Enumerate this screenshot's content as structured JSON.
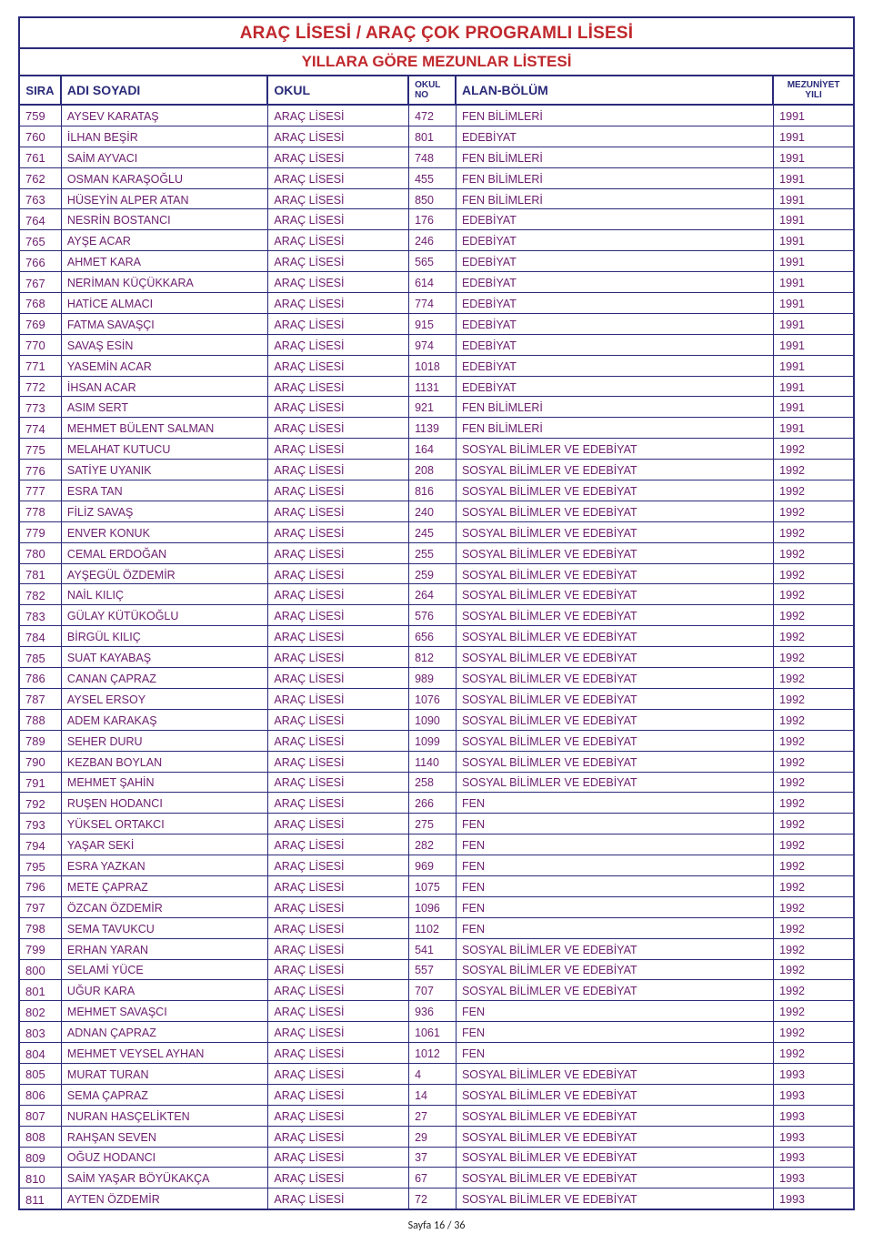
{
  "title": "ARAÇ LİSESİ / ARAÇ ÇOK PROGRAMLI LİSESİ",
  "subtitle": "YILLARA GÖRE MEZUNLAR LİSTESİ",
  "columns": {
    "sira": "SIRA",
    "ad": "ADI SOYADI",
    "okul": "OKUL",
    "okulno": "OKUL NO",
    "alan": "ALAN-BÖLÜM",
    "yil": "MEZUNİYET YILI"
  },
  "footer": "Sayfa 16 / 36",
  "rows": [
    {
      "sira": "759",
      "ad": "AYSEV KARATAŞ",
      "okul": "ARAÇ LİSESİ",
      "okulno": "472",
      "alan": "FEN BİLİMLERİ",
      "yil": "1991"
    },
    {
      "sira": "760",
      "ad": "İLHAN BEŞİR",
      "okul": "ARAÇ LİSESİ",
      "okulno": "801",
      "alan": "EDEBİYAT",
      "yil": "1991"
    },
    {
      "sira": "761",
      "ad": "SAİM AYVACI",
      "okul": "ARAÇ LİSESİ",
      "okulno": "748",
      "alan": "FEN BİLİMLERİ",
      "yil": "1991"
    },
    {
      "sira": "762",
      "ad": "OSMAN KARAŞOĞLU",
      "okul": "ARAÇ LİSESİ",
      "okulno": "455",
      "alan": "FEN BİLİMLERİ",
      "yil": "1991"
    },
    {
      "sira": "763",
      "ad": "HÜSEYİN ALPER ATAN",
      "okul": "ARAÇ LİSESİ",
      "okulno": "850",
      "alan": "FEN BİLİMLERİ",
      "yil": "1991"
    },
    {
      "sira": "764",
      "ad": "NESRİN BOSTANCI",
      "okul": "ARAÇ LİSESİ",
      "okulno": "176",
      "alan": "EDEBİYAT",
      "yil": "1991"
    },
    {
      "sira": "765",
      "ad": "AYŞE ACAR",
      "okul": "ARAÇ LİSESİ",
      "okulno": "246",
      "alan": "EDEBİYAT",
      "yil": "1991"
    },
    {
      "sira": "766",
      "ad": "AHMET KARA",
      "okul": "ARAÇ LİSESİ",
      "okulno": "565",
      "alan": "EDEBİYAT",
      "yil": "1991"
    },
    {
      "sira": "767",
      "ad": "NERİMAN KÜÇÜKKARA",
      "okul": "ARAÇ LİSESİ",
      "okulno": "614",
      "alan": "EDEBİYAT",
      "yil": "1991"
    },
    {
      "sira": "768",
      "ad": "HATİCE ALMACI",
      "okul": "ARAÇ LİSESİ",
      "okulno": "774",
      "alan": "EDEBİYAT",
      "yil": "1991"
    },
    {
      "sira": "769",
      "ad": "FATMA SAVAŞÇI",
      "okul": "ARAÇ LİSESİ",
      "okulno": "915",
      "alan": "EDEBİYAT",
      "yil": "1991"
    },
    {
      "sira": "770",
      "ad": "SAVAŞ ESİN",
      "okul": "ARAÇ LİSESİ",
      "okulno": "974",
      "alan": "EDEBİYAT",
      "yil": "1991"
    },
    {
      "sira": "771",
      "ad": "YASEMİN ACAR",
      "okul": "ARAÇ LİSESİ",
      "okulno": "1018",
      "alan": "EDEBİYAT",
      "yil": "1991"
    },
    {
      "sira": "772",
      "ad": "İHSAN ACAR",
      "okul": "ARAÇ LİSESİ",
      "okulno": "1131",
      "alan": "EDEBİYAT",
      "yil": "1991"
    },
    {
      "sira": "773",
      "ad": "ASIM SERT",
      "okul": "ARAÇ LİSESİ",
      "okulno": "921",
      "alan": "FEN BİLİMLERİ",
      "yil": "1991"
    },
    {
      "sira": "774",
      "ad": "MEHMET BÜLENT SALMAN",
      "okul": "ARAÇ LİSESİ",
      "okulno": "1139",
      "alan": "FEN BİLİMLERİ",
      "yil": "1991"
    },
    {
      "sira": "775",
      "ad": "MELAHAT KUTUCU",
      "okul": "ARAÇ LİSESİ",
      "okulno": "164",
      "alan": "SOSYAL BİLİMLER VE EDEBİYAT",
      "yil": "1992"
    },
    {
      "sira": "776",
      "ad": "SATİYE UYANIK",
      "okul": "ARAÇ LİSESİ",
      "okulno": "208",
      "alan": "SOSYAL BİLİMLER VE EDEBİYAT",
      "yil": "1992"
    },
    {
      "sira": "777",
      "ad": "ESRA TAN",
      "okul": "ARAÇ LİSESİ",
      "okulno": "816",
      "alan": "SOSYAL BİLİMLER VE EDEBİYAT",
      "yil": "1992"
    },
    {
      "sira": "778",
      "ad": "FİLİZ SAVAŞ",
      "okul": "ARAÇ LİSESİ",
      "okulno": "240",
      "alan": "SOSYAL BİLİMLER VE EDEBİYAT",
      "yil": "1992"
    },
    {
      "sira": "779",
      "ad": "ENVER KONUK",
      "okul": "ARAÇ LİSESİ",
      "okulno": "245",
      "alan": "SOSYAL BİLİMLER VE EDEBİYAT",
      "yil": "1992"
    },
    {
      "sira": "780",
      "ad": "CEMAL ERDOĞAN",
      "okul": "ARAÇ LİSESİ",
      "okulno": "255",
      "alan": "SOSYAL BİLİMLER VE EDEBİYAT",
      "yil": "1992"
    },
    {
      "sira": "781",
      "ad": "AYŞEGÜL ÖZDEMİR",
      "okul": "ARAÇ LİSESİ",
      "okulno": "259",
      "alan": "SOSYAL BİLİMLER VE EDEBİYAT",
      "yil": "1992"
    },
    {
      "sira": "782",
      "ad": "NAİL KILIÇ",
      "okul": "ARAÇ LİSESİ",
      "okulno": "264",
      "alan": "SOSYAL BİLİMLER VE EDEBİYAT",
      "yil": "1992"
    },
    {
      "sira": "783",
      "ad": "GÜLAY KÜTÜKOĞLU",
      "okul": "ARAÇ LİSESİ",
      "okulno": "576",
      "alan": "SOSYAL BİLİMLER VE EDEBİYAT",
      "yil": "1992"
    },
    {
      "sira": "784",
      "ad": "BİRGÜL KILIÇ",
      "okul": "ARAÇ LİSESİ",
      "okulno": "656",
      "alan": "SOSYAL BİLİMLER VE EDEBİYAT",
      "yil": "1992"
    },
    {
      "sira": "785",
      "ad": "SUAT KAYABAŞ",
      "okul": "ARAÇ LİSESİ",
      "okulno": "812",
      "alan": "SOSYAL BİLİMLER VE EDEBİYAT",
      "yil": "1992"
    },
    {
      "sira": "786",
      "ad": "CANAN ÇAPRAZ",
      "okul": "ARAÇ LİSESİ",
      "okulno": "989",
      "alan": "SOSYAL BİLİMLER VE EDEBİYAT",
      "yil": "1992"
    },
    {
      "sira": "787",
      "ad": "AYSEL ERSOY",
      "okul": "ARAÇ LİSESİ",
      "okulno": "1076",
      "alan": "SOSYAL BİLİMLER VE EDEBİYAT",
      "yil": "1992"
    },
    {
      "sira": "788",
      "ad": "ADEM KARAKAŞ",
      "okul": "ARAÇ LİSESİ",
      "okulno": "1090",
      "alan": "SOSYAL BİLİMLER VE EDEBİYAT",
      "yil": "1992"
    },
    {
      "sira": "789",
      "ad": "SEHER DURU",
      "okul": "ARAÇ LİSESİ",
      "okulno": "1099",
      "alan": "SOSYAL BİLİMLER VE EDEBİYAT",
      "yil": "1992"
    },
    {
      "sira": "790",
      "ad": "KEZBAN BOYLAN",
      "okul": "ARAÇ LİSESİ",
      "okulno": "1140",
      "alan": "SOSYAL BİLİMLER VE EDEBİYAT",
      "yil": "1992"
    },
    {
      "sira": "791",
      "ad": "MEHMET ŞAHİN",
      "okul": "ARAÇ LİSESİ",
      "okulno": "258",
      "alan": "SOSYAL BİLİMLER VE EDEBİYAT",
      "yil": "1992"
    },
    {
      "sira": "792",
      "ad": "RUŞEN HODANCI",
      "okul": "ARAÇ LİSESİ",
      "okulno": "266",
      "alan": "FEN",
      "yil": "1992"
    },
    {
      "sira": "793",
      "ad": "YÜKSEL ORTAKCI",
      "okul": "ARAÇ LİSESİ",
      "okulno": "275",
      "alan": "FEN",
      "yil": "1992"
    },
    {
      "sira": "794",
      "ad": "YAŞAR SEKİ",
      "okul": "ARAÇ LİSESİ",
      "okulno": "282",
      "alan": "FEN",
      "yil": "1992"
    },
    {
      "sira": "795",
      "ad": "ESRA YAZKAN",
      "okul": "ARAÇ LİSESİ",
      "okulno": "969",
      "alan": "FEN",
      "yil": "1992"
    },
    {
      "sira": "796",
      "ad": "METE ÇAPRAZ",
      "okul": "ARAÇ LİSESİ",
      "okulno": "1075",
      "alan": "FEN",
      "yil": "1992"
    },
    {
      "sira": "797",
      "ad": "ÖZCAN ÖZDEMİR",
      "okul": "ARAÇ LİSESİ",
      "okulno": "1096",
      "alan": "FEN",
      "yil": "1992"
    },
    {
      "sira": "798",
      "ad": "SEMA TAVUKCU",
      "okul": "ARAÇ LİSESİ",
      "okulno": "1102",
      "alan": "FEN",
      "yil": "1992"
    },
    {
      "sira": "799",
      "ad": "ERHAN YARAN",
      "okul": "ARAÇ LİSESİ",
      "okulno": "541",
      "alan": "SOSYAL BİLİMLER VE EDEBİYAT",
      "yil": "1992"
    },
    {
      "sira": "800",
      "ad": "SELAMİ YÜCE",
      "okul": "ARAÇ LİSESİ",
      "okulno": "557",
      "alan": "SOSYAL BİLİMLER VE EDEBİYAT",
      "yil": "1992"
    },
    {
      "sira": "801",
      "ad": "UĞUR KARA",
      "okul": "ARAÇ LİSESİ",
      "okulno": "707",
      "alan": "SOSYAL BİLİMLER VE EDEBİYAT",
      "yil": "1992"
    },
    {
      "sira": "802",
      "ad": "MEHMET SAVAŞCI",
      "okul": "ARAÇ LİSESİ",
      "okulno": "936",
      "alan": "FEN",
      "yil": "1992"
    },
    {
      "sira": "803",
      "ad": "ADNAN ÇAPRAZ",
      "okul": "ARAÇ LİSESİ",
      "okulno": "1061",
      "alan": "FEN",
      "yil": "1992"
    },
    {
      "sira": "804",
      "ad": "MEHMET VEYSEL AYHAN",
      "okul": "ARAÇ LİSESİ",
      "okulno": "1012",
      "alan": "FEN",
      "yil": "1992"
    },
    {
      "sira": "805",
      "ad": "MURAT TURAN",
      "okul": "ARAÇ LİSESİ",
      "okulno": "4",
      "alan": "SOSYAL BİLİMLER VE EDEBİYAT",
      "yil": "1993"
    },
    {
      "sira": "806",
      "ad": "SEMA ÇAPRAZ",
      "okul": "ARAÇ LİSESİ",
      "okulno": "14",
      "alan": "SOSYAL BİLİMLER VE EDEBİYAT",
      "yil": "1993"
    },
    {
      "sira": "807",
      "ad": "NURAN HASÇELİKTEN",
      "okul": "ARAÇ LİSESİ",
      "okulno": "27",
      "alan": "SOSYAL BİLİMLER VE EDEBİYAT",
      "yil": "1993"
    },
    {
      "sira": "808",
      "ad": "RAHŞAN SEVEN",
      "okul": "ARAÇ LİSESİ",
      "okulno": "29",
      "alan": "SOSYAL BİLİMLER VE EDEBİYAT",
      "yil": "1993"
    },
    {
      "sira": "809",
      "ad": "OĞUZ HODANCI",
      "okul": "ARAÇ LİSESİ",
      "okulno": "37",
      "alan": "SOSYAL BİLİMLER VE EDEBİYAT",
      "yil": "1993"
    },
    {
      "sira": "810",
      "ad": "SAİM YAŞAR BÖYÜKAKÇA",
      "okul": "ARAÇ LİSESİ",
      "okulno": "67",
      "alan": "SOSYAL BİLİMLER VE EDEBİYAT",
      "yil": "1993"
    },
    {
      "sira": "811",
      "ad": "AYTEN ÖZDEMİR",
      "okul": "ARAÇ LİSESİ",
      "okulno": "72",
      "alan": "SOSYAL BİLİMLER VE EDEBİYAT",
      "yil": "1993"
    }
  ]
}
